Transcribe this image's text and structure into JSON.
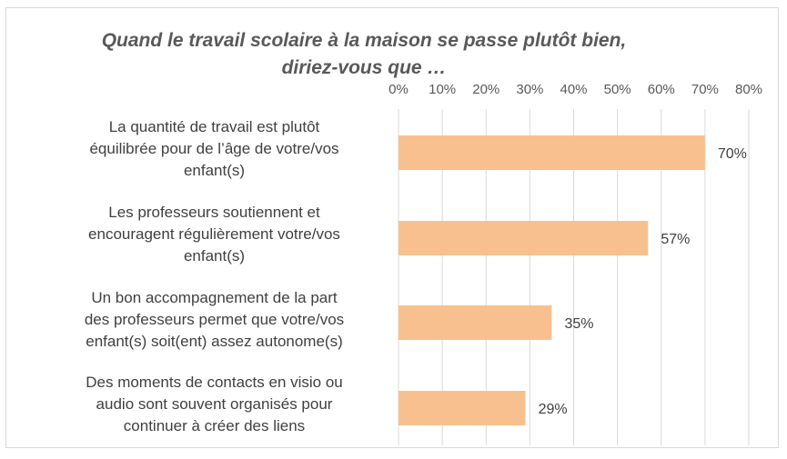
{
  "chart_data": {
    "type": "bar",
    "orientation": "horizontal",
    "title": "Quand le travail scolaire à la maison se passe plutôt bien, diriez-vous que …",
    "title_lines": [
      "Quand le travail scolaire à la maison se passe plutôt bien,",
      "diriez-vous que …"
    ],
    "categories": [
      "La quantité de travail est plutôt équilibrée pour de l’âge de votre/vos enfant(s)",
      "Les professeurs soutiennent et encouragent régulièrement votre/vos enfant(s)",
      "Un bon accompagnement de la part des professeurs permet que votre/vos enfant(s) soit(ent) assez autonome(s)",
      "Des moments de contacts en visio ou audio sont souvent organisés pour continuer à créer des liens"
    ],
    "category_lines": [
      [
        "La quantité de travail est plutôt",
        "équilibrée pour de l’âge de votre/vos",
        "enfant(s)"
      ],
      [
        "Les professeurs soutiennent et",
        "encouragent régulièrement votre/vos",
        "enfant(s)"
      ],
      [
        "Un bon accompagnement de la part",
        "des professeurs permet que votre/vos",
        "enfant(s) soit(ent) assez autonome(s)"
      ],
      [
        "Des moments de contacts en visio ou",
        "audio sont souvent organisés pour",
        "continuer à créer des liens"
      ]
    ],
    "values": [
      70,
      57,
      35,
      29
    ],
    "data_labels": [
      "70%",
      "57%",
      "35%",
      "29%"
    ],
    "xlim": [
      0,
      80
    ],
    "x_ticks": [
      "0%",
      "10%",
      "20%",
      "30%",
      "40%",
      "50%",
      "60%",
      "70%",
      "80%"
    ],
    "x_axis_position": "top",
    "grid": true,
    "legend": "none",
    "bar_color": "#f8c08f",
    "grid_color": "#d9d9d9"
  }
}
